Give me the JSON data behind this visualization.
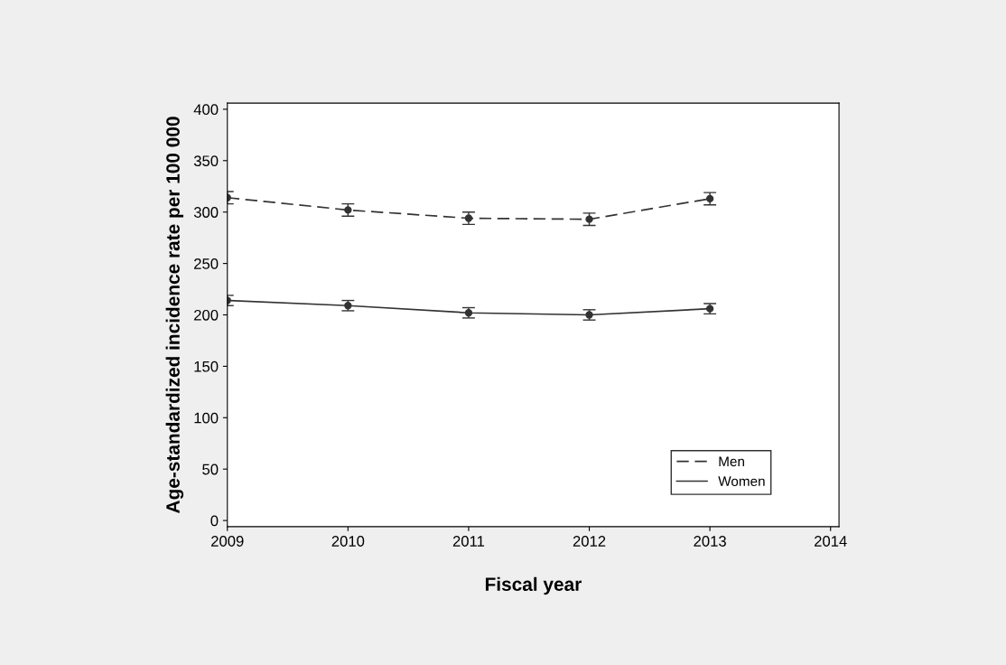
{
  "chart_data": {
    "type": "line",
    "xlabel": "Fiscal year",
    "ylabel": "Age-standardized incidence rate per 100 000",
    "x": [
      2009,
      2010,
      2011,
      2012,
      2013
    ],
    "series": [
      {
        "name": "Men",
        "color": "#333333",
        "line_style": "dashed",
        "values": [
          314,
          302,
          294,
          293,
          313
        ],
        "errors": [
          6,
          6,
          6,
          6,
          6
        ]
      },
      {
        "name": "Women",
        "color": "#333333",
        "line_style": "solid",
        "values": [
          214,
          209,
          202,
          200,
          206
        ],
        "errors": [
          5,
          5,
          5,
          5,
          5
        ]
      }
    ],
    "xlim": [
      2009,
      2014.07
    ],
    "ylim": [
      -6,
      406
    ],
    "xticks": [
      2009,
      2010,
      2011,
      2012,
      2013,
      2014
    ],
    "yticks": [
      0,
      50,
      100,
      150,
      200,
      250,
      300,
      350,
      400
    ],
    "marker": "circle",
    "legend": "bottom right",
    "grid": false
  }
}
